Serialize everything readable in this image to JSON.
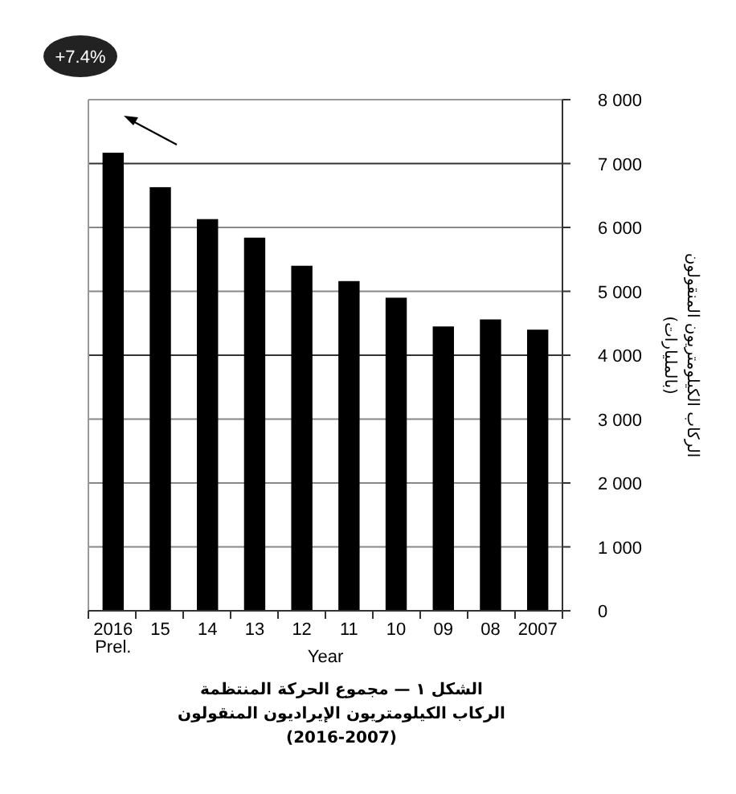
{
  "chart_data": {
    "type": "bar",
    "title": "الشكل ١ — مجموع الحركة المنتظمة\nالركاب الكيلومتريون الإيراديون المنقولون\n(2016-2007)",
    "xlabel": "Year",
    "ylabel": "الركاب الكيلومتريون المنقولون\n(بالمليارات)",
    "categories": [
      "2016\nPrel.",
      "15",
      "14",
      "13",
      "12",
      "11",
      "10",
      "09",
      "08",
      "2007"
    ],
    "values": [
      7170,
      6630,
      6130,
      5840,
      5400,
      5160,
      4900,
      4450,
      4560,
      4400
    ],
    "color": "#000000",
    "ylim": [
      0,
      8000
    ],
    "yticks": [
      {
        "value": 0,
        "label": "0"
      },
      {
        "value": 1000,
        "label": "1 000"
      },
      {
        "value": 2000,
        "label": "2 000"
      },
      {
        "value": 3000,
        "label": "3 000"
      },
      {
        "value": 4000,
        "label": "4 000"
      },
      {
        "value": 5000,
        "label": "5 000"
      },
      {
        "value": 6000,
        "label": "6 000"
      },
      {
        "value": 7000,
        "label": "7 000"
      },
      {
        "value": 8000,
        "label": "8 000"
      }
    ],
    "grid": "y",
    "annotations": [
      "+7.4%"
    ]
  }
}
